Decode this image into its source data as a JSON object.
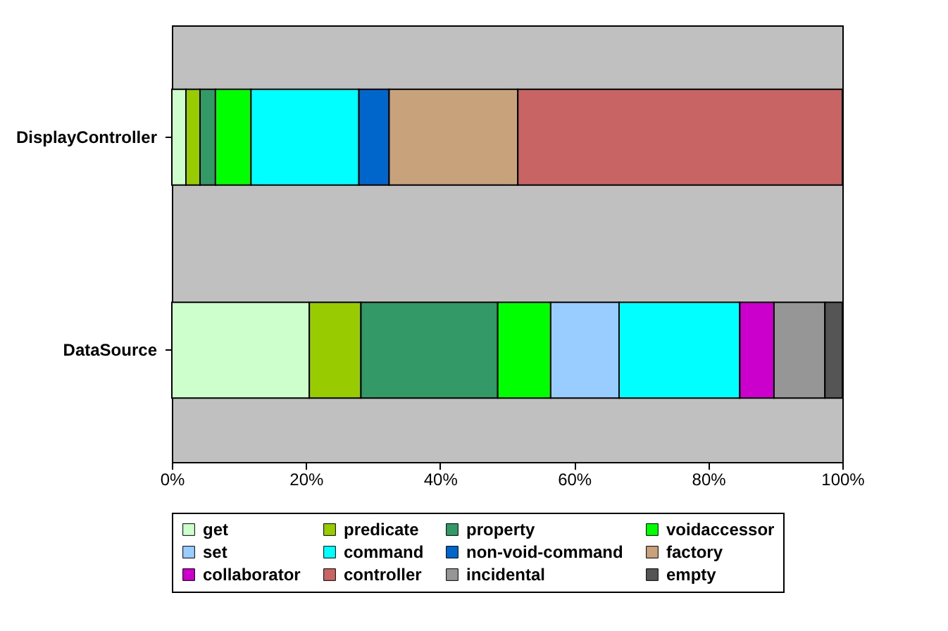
{
  "chart_data": {
    "type": "bar",
    "orientation": "horizontal",
    "stacked": true,
    "categories": [
      "DisplayController",
      "DataSource"
    ],
    "series": [
      {
        "name": "get",
        "color": "#ccffcc",
        "values": [
          2.1,
          20.5
        ]
      },
      {
        "name": "predicate",
        "color": "#99cc00",
        "values": [
          2.1,
          7.7
        ]
      },
      {
        "name": "property",
        "color": "#339966",
        "values": [
          2.3,
          20.4
        ]
      },
      {
        "name": "voidaccessor",
        "color": "#00ff00",
        "values": [
          5.3,
          7.9
        ]
      },
      {
        "name": "set",
        "color": "#99ccff",
        "values": [
          null,
          10.2
        ]
      },
      {
        "name": "command",
        "color": "#00ffff",
        "values": [
          16.1,
          18.0
        ]
      },
      {
        "name": "non-void-command",
        "color": "#0066cc",
        "values": [
          4.5,
          null
        ]
      },
      {
        "name": "factory",
        "color": "#c8a27a",
        "values": [
          19.2,
          null
        ]
      },
      {
        "name": "collaborator",
        "color": "#cc00cc",
        "values": [
          null,
          5.1
        ]
      },
      {
        "name": "controller",
        "color": "#c86464",
        "values": [
          48.4,
          null
        ]
      },
      {
        "name": "incidental",
        "color": "#969696",
        "values": [
          null,
          7.6
        ]
      },
      {
        "name": "empty",
        "color": "#555555",
        "values": [
          null,
          2.6
        ]
      }
    ],
    "xlim": [
      0,
      100
    ],
    "xticks": [
      {
        "value": 0,
        "label": "0%"
      },
      {
        "value": 20,
        "label": "20%"
      },
      {
        "value": 40,
        "label": "40%"
      },
      {
        "value": 60,
        "label": "60%"
      },
      {
        "value": 80,
        "label": "80%"
      },
      {
        "value": 100,
        "label": "100%"
      }
    ],
    "grid": false,
    "legend": "bottom"
  }
}
